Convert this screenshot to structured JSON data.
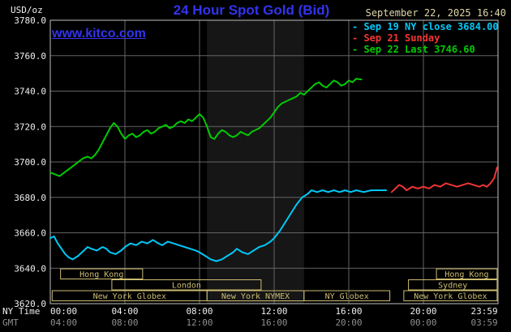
{
  "header": {
    "units": "USD/oz",
    "title": "24 Hour Spot Gold (Bid)",
    "datetime": "September 22, 2025 16:40"
  },
  "watermark": {
    "text": "www.kitco.com"
  },
  "legend": {
    "entries": [
      {
        "label": "Sep 19 NY close 3684.00",
        "color": "#00c8f8"
      },
      {
        "label": "Sep 21 Sunday",
        "color": "#f23535"
      },
      {
        "label": "Sep 22 Last 3746.60",
        "color": "#00cc00"
      }
    ]
  },
  "axes": {
    "ny_label": "NY Time",
    "gmt_label": "GMT",
    "yticks": [
      3620,
      3640,
      3660,
      3680,
      3700,
      3720,
      3740,
      3760,
      3780
    ],
    "xticks": [
      {
        "hour": 0,
        "ny": "00:00",
        "gmt": "04:00"
      },
      {
        "hour": 4,
        "ny": "04:00",
        "gmt": "08:00"
      },
      {
        "hour": 8,
        "ny": "08:00",
        "gmt": "12:00"
      },
      {
        "hour": 12,
        "ny": "12:00",
        "gmt": "16:00"
      },
      {
        "hour": 16,
        "ny": "16:00",
        "gmt": "20:00"
      },
      {
        "hour": 20,
        "ny": "20:00",
        "gmt": "00:00"
      },
      {
        "hour": 23.983,
        "ny": "23:59",
        "gmt": "03:59"
      }
    ]
  },
  "sessions": [
    {
      "row": 0,
      "start": 0.55,
      "end": 4.95,
      "label": "Hong Kong"
    },
    {
      "row": 0,
      "start": 20.7,
      "end": 23.95,
      "label": "Hong Kong"
    },
    {
      "row": 1,
      "start": 3.3,
      "end": 11.3,
      "label": "London"
    },
    {
      "row": 1,
      "start": 19.2,
      "end": 23.95,
      "label": "Sydney"
    },
    {
      "row": 2,
      "start": 0.1,
      "end": 8.4,
      "label": "New York Globex"
    },
    {
      "row": 2,
      "start": 8.4,
      "end": 13.6,
      "label": "New York NYMEX"
    },
    {
      "row": 2,
      "start": 13.6,
      "end": 18.2,
      "label": "NY Globex"
    },
    {
      "row": 2,
      "start": 18.95,
      "end": 23.95,
      "label": "New York Globex"
    }
  ],
  "colors": {
    "background": "#000000",
    "band": "#161616",
    "grid": "#646464",
    "frame": "#c0c0c0",
    "axis_text": "#eeeeee",
    "gmt_text": "#8f8f8f",
    "session": "#cdbc72",
    "title_blue": "#3333ee",
    "date_tan": "#ded6a8"
  },
  "chart_data": {
    "type": "line",
    "title": "24 Hour Spot Gold (Bid)",
    "xlabel": "NY Time (hours)",
    "ylabel": "USD/oz",
    "xlim": [
      0,
      24
    ],
    "ylim": [
      3620,
      3780
    ],
    "grid": true,
    "legend_position": "top-right",
    "nymex_band": [
      8.4,
      13.6
    ],
    "series": [
      {
        "id": "sep19",
        "name": "Sep 19 NY close 3684.00",
        "color": "#00c8f8",
        "points": [
          [
            0,
            3657
          ],
          [
            0.2,
            3658
          ],
          [
            0.4,
            3654
          ],
          [
            0.6,
            3651
          ],
          [
            0.8,
            3648
          ],
          [
            1,
            3646
          ],
          [
            1.2,
            3645
          ],
          [
            1.5,
            3647
          ],
          [
            1.8,
            3650
          ],
          [
            2,
            3652
          ],
          [
            2.2,
            3651
          ],
          [
            2.5,
            3650
          ],
          [
            2.8,
            3652
          ],
          [
            3,
            3651
          ],
          [
            3.2,
            3649
          ],
          [
            3.5,
            3648
          ],
          [
            3.8,
            3650
          ],
          [
            4,
            3652
          ],
          [
            4.3,
            3654
          ],
          [
            4.6,
            3653
          ],
          [
            4.9,
            3655
          ],
          [
            5.2,
            3654
          ],
          [
            5.5,
            3656
          ],
          [
            5.8,
            3654
          ],
          [
            6,
            3653
          ],
          [
            6.3,
            3655
          ],
          [
            6.6,
            3654
          ],
          [
            6.9,
            3653
          ],
          [
            7.2,
            3652
          ],
          [
            7.5,
            3651
          ],
          [
            7.8,
            3650
          ],
          [
            8,
            3649
          ],
          [
            8.3,
            3647
          ],
          [
            8.6,
            3645
          ],
          [
            8.9,
            3644
          ],
          [
            9.2,
            3645
          ],
          [
            9.5,
            3647
          ],
          [
            9.8,
            3649
          ],
          [
            10,
            3651
          ],
          [
            10.3,
            3649
          ],
          [
            10.6,
            3648
          ],
          [
            10.9,
            3650
          ],
          [
            11.2,
            3652
          ],
          [
            11.5,
            3653
          ],
          [
            11.8,
            3655
          ],
          [
            12,
            3657
          ],
          [
            12.3,
            3661
          ],
          [
            12.6,
            3666
          ],
          [
            12.9,
            3671
          ],
          [
            13.2,
            3676
          ],
          [
            13.5,
            3680
          ],
          [
            13.8,
            3682
          ],
          [
            14,
            3684
          ],
          [
            14.3,
            3683
          ],
          [
            14.6,
            3684
          ],
          [
            14.9,
            3683
          ],
          [
            15.2,
            3684
          ],
          [
            15.5,
            3683
          ],
          [
            15.8,
            3684
          ],
          [
            16.1,
            3683
          ],
          [
            16.4,
            3684
          ],
          [
            16.8,
            3683
          ],
          [
            17.2,
            3684
          ],
          [
            17.6,
            3684
          ],
          [
            18,
            3684
          ]
        ]
      },
      {
        "id": "sep21",
        "name": "Sep 21 Sunday",
        "color": "#f23535",
        "points": [
          [
            18.3,
            3683
          ],
          [
            18.5,
            3685
          ],
          [
            18.7,
            3687
          ],
          [
            18.9,
            3686
          ],
          [
            19.1,
            3684
          ],
          [
            19.4,
            3686
          ],
          [
            19.7,
            3685
          ],
          [
            20,
            3686
          ],
          [
            20.3,
            3685
          ],
          [
            20.6,
            3687
          ],
          [
            20.9,
            3686
          ],
          [
            21.2,
            3688
          ],
          [
            21.5,
            3687
          ],
          [
            21.8,
            3686
          ],
          [
            22.1,
            3687
          ],
          [
            22.4,
            3688
          ],
          [
            22.7,
            3687
          ],
          [
            23,
            3686
          ],
          [
            23.2,
            3687
          ],
          [
            23.4,
            3686
          ],
          [
            23.6,
            3688
          ],
          [
            23.8,
            3691
          ],
          [
            23.95,
            3697
          ]
        ]
      },
      {
        "id": "sep22",
        "name": "Sep 22 Last 3746.60",
        "color": "#00cc00",
        "points": [
          [
            0,
            3694
          ],
          [
            0.25,
            3693
          ],
          [
            0.5,
            3692
          ],
          [
            0.75,
            3694
          ],
          [
            1,
            3696
          ],
          [
            1.25,
            3698
          ],
          [
            1.5,
            3700
          ],
          [
            1.75,
            3702
          ],
          [
            2,
            3703
          ],
          [
            2.2,
            3702
          ],
          [
            2.4,
            3704
          ],
          [
            2.6,
            3707
          ],
          [
            2.8,
            3711
          ],
          [
            3,
            3715
          ],
          [
            3.2,
            3719
          ],
          [
            3.4,
            3722
          ],
          [
            3.6,
            3720
          ],
          [
            3.8,
            3716
          ],
          [
            4,
            3713
          ],
          [
            4.2,
            3715
          ],
          [
            4.4,
            3716
          ],
          [
            4.6,
            3714
          ],
          [
            4.8,
            3715
          ],
          [
            5,
            3717
          ],
          [
            5.2,
            3718
          ],
          [
            5.4,
            3716
          ],
          [
            5.6,
            3717
          ],
          [
            5.8,
            3719
          ],
          [
            6,
            3720
          ],
          [
            6.2,
            3721
          ],
          [
            6.4,
            3719
          ],
          [
            6.6,
            3720
          ],
          [
            6.8,
            3722
          ],
          [
            7,
            3723
          ],
          [
            7.2,
            3722
          ],
          [
            7.4,
            3724
          ],
          [
            7.6,
            3723
          ],
          [
            7.8,
            3725
          ],
          [
            8,
            3727
          ],
          [
            8.2,
            3725
          ],
          [
            8.4,
            3720
          ],
          [
            8.6,
            3714
          ],
          [
            8.8,
            3713
          ],
          [
            9,
            3716
          ],
          [
            9.2,
            3718
          ],
          [
            9.4,
            3717
          ],
          [
            9.6,
            3715
          ],
          [
            9.8,
            3714
          ],
          [
            10,
            3715
          ],
          [
            10.2,
            3717
          ],
          [
            10.4,
            3716
          ],
          [
            10.6,
            3715
          ],
          [
            10.8,
            3717
          ],
          [
            11,
            3718
          ],
          [
            11.2,
            3719
          ],
          [
            11.4,
            3721
          ],
          [
            11.6,
            3723
          ],
          [
            11.8,
            3725
          ],
          [
            12,
            3728
          ],
          [
            12.2,
            3731
          ],
          [
            12.4,
            3733
          ],
          [
            12.6,
            3734
          ],
          [
            12.8,
            3735
          ],
          [
            13,
            3736
          ],
          [
            13.2,
            3737
          ],
          [
            13.4,
            3739
          ],
          [
            13.6,
            3738
          ],
          [
            13.8,
            3740
          ],
          [
            14,
            3742
          ],
          [
            14.2,
            3744
          ],
          [
            14.4,
            3745
          ],
          [
            14.6,
            3743
          ],
          [
            14.8,
            3742
          ],
          [
            15,
            3744
          ],
          [
            15.2,
            3746
          ],
          [
            15.4,
            3745
          ],
          [
            15.6,
            3743
          ],
          [
            15.8,
            3744
          ],
          [
            16,
            3746
          ],
          [
            16.2,
            3745
          ],
          [
            16.4,
            3747
          ],
          [
            16.67,
            3746.6
          ]
        ]
      }
    ]
  }
}
